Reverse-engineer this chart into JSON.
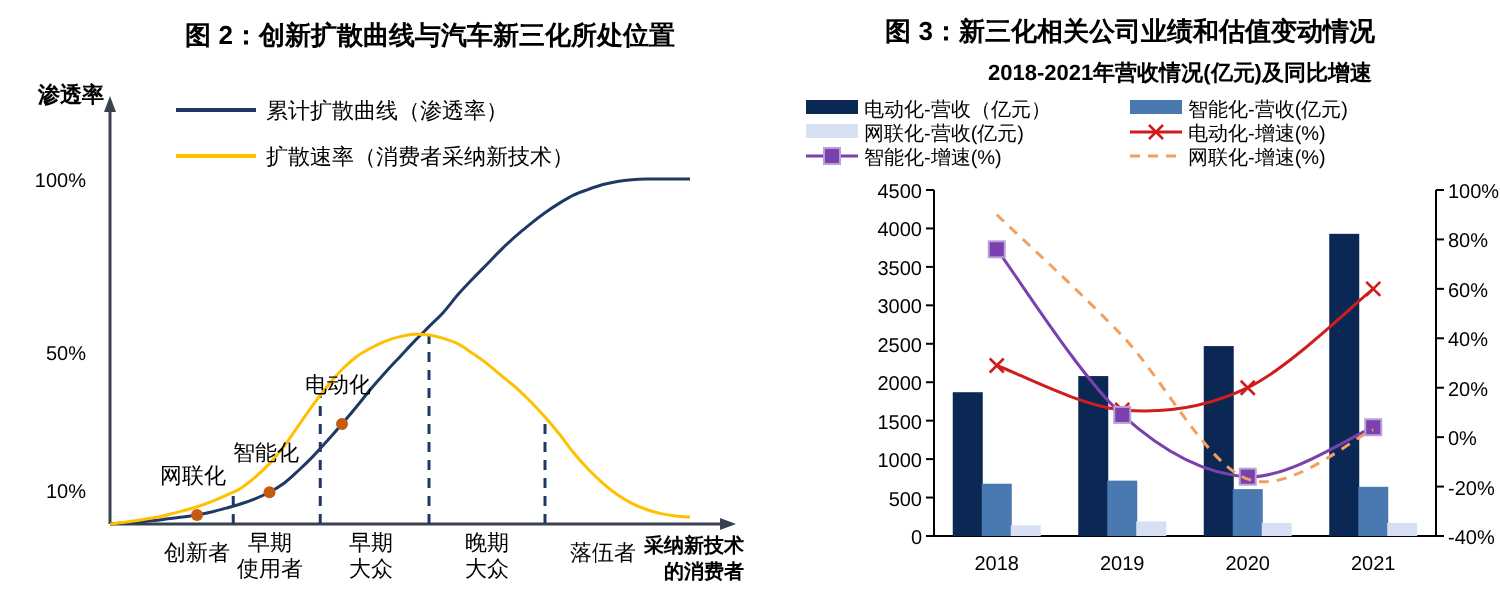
{
  "chart_data": [
    {
      "type": "line",
      "title": "图 2：创新扩散曲线与汽车新三化所处位置",
      "ylabel": "渗透率",
      "xlabel": "采纳新技术的消费者",
      "ylim": [
        0,
        120
      ],
      "categories": [
        null,
        null,
        null,
        null,
        null,
        null,
        "创新者",
        null,
        null,
        null,
        null,
        "早期使用者",
        null,
        null,
        null,
        null,
        null,
        null,
        "早期大众",
        null,
        null,
        null,
        null,
        null,
        null,
        null,
        "晚期大众",
        null,
        null,
        null,
        null,
        null,
        null,
        null,
        "落伍者",
        null,
        null,
        null,
        null,
        null,
        null
      ],
      "yticks": [
        {
          "value": 10,
          "label": "10%"
        },
        {
          "value": 50,
          "label": "50%"
        },
        {
          "value": 100,
          "label": "100%"
        }
      ],
      "legend": "top left",
      "series": [
        {
          "name": "累计扩散曲线（渗透率）",
          "color": "#1f3864",
          "values": [
            0,
            0.3,
            0.6,
            1,
            1.5,
            2,
            2.6,
            3.5,
            4.6,
            5.8,
            7.3,
            9.2,
            11.8,
            15.5,
            19.6,
            24.2,
            29,
            34,
            39.2,
            44,
            48.5,
            53,
            57.2,
            61.4,
            66.5,
            71,
            75.3,
            79.6,
            83.5,
            87,
            90.2,
            93,
            95.4,
            97,
            98.4,
            99.3,
            99.8,
            100,
            100,
            100,
            100
          ]
        },
        {
          "name": "扩散速率（消费者采纳新技术）",
          "color": "#ffc000",
          "values": [
            0,
            0.5,
            1.1,
            1.8,
            2.7,
            3.8,
            5,
            6.5,
            8.3,
            10.3,
            13.5,
            17.5,
            22.5,
            28.5,
            34.5,
            40,
            44.8,
            48.5,
            51,
            53,
            54.3,
            55,
            54.8,
            53.8,
            52.2,
            49.5,
            46.5,
            43,
            39.5,
            35.5,
            31,
            26,
            20.5,
            15.8,
            11.8,
            8.5,
            6,
            4.2,
            3,
            2.3,
            2
          ]
        },
        {
          "type": "scatter",
          "color": "#c55a11",
          "values": [
            null,
            null,
            null,
            null,
            null,
            null,
            2.6,
            null,
            null,
            null,
            null,
            9.2,
            null,
            null,
            null,
            null,
            29,
            null,
            null,
            null,
            null,
            null,
            null,
            null,
            null,
            null,
            null,
            null,
            null,
            null,
            null,
            null,
            null,
            null,
            null,
            null,
            null,
            null,
            null,
            null,
            null
          ]
        }
      ],
      "annotations": [
        "网联化",
        "智能化",
        "电动化"
      ]
    },
    {
      "type": "bar",
      "title": "图 3：新三化相关公司业绩和估值变动情况",
      "subtitle": "2018-2021年营收情况(亿元)及同比增速",
      "categories": [
        "2018",
        "2019",
        "2020",
        "2021"
      ],
      "ylim": [
        0,
        4500
      ],
      "yticks": [
        0,
        500,
        1000,
        1500,
        2000,
        2500,
        3000,
        3500,
        4000,
        4500
      ],
      "y2lim": [
        -40,
        100
      ],
      "y2ticks": [
        {
          "value": -40,
          "label": "-40%"
        },
        {
          "value": -20,
          "label": "-20%"
        },
        {
          "value": 0,
          "label": "0%"
        },
        {
          "value": 20,
          "label": "20%"
        },
        {
          "value": 40,
          "label": "40%"
        },
        {
          "value": 60,
          "label": "60%"
        },
        {
          "value": 80,
          "label": "80%"
        },
        {
          "value": 100,
          "label": "100%"
        }
      ],
      "legend": "top",
      "grid": false,
      "series": [
        {
          "name": "电动化-营收（亿元）",
          "color": "#0b2855",
          "values": [
            1870,
            2080,
            2470,
            3930
          ]
        },
        {
          "name": "智能化-营收(亿元)",
          "color": "#4a78b0",
          "values": [
            680,
            720,
            610,
            640
          ]
        },
        {
          "name": "网联化-营收(亿元)",
          "color": "#d6e0f2",
          "values": [
            140,
            190,
            170,
            170
          ]
        },
        {
          "name": "电动化-增速(%)",
          "type": "line",
          "axis": "y2",
          "marker": "cross",
          "line_style": "solid",
          "color": "#d01c1c",
          "values": [
            29,
            11,
            20,
            60
          ]
        },
        {
          "name": "智能化-增速(%)",
          "type": "line",
          "axis": "y2",
          "marker": "square",
          "line_style": "solid",
          "color": "#7b3fae",
          "values": [
            76,
            9,
            -16,
            4
          ]
        },
        {
          "name": "网联化-增速(%)",
          "type": "line",
          "axis": "y2",
          "marker": "none",
          "line_style": "dashed",
          "color": "#f0a060",
          "values": [
            90,
            41,
            -17,
            3
          ]
        }
      ]
    }
  ]
}
